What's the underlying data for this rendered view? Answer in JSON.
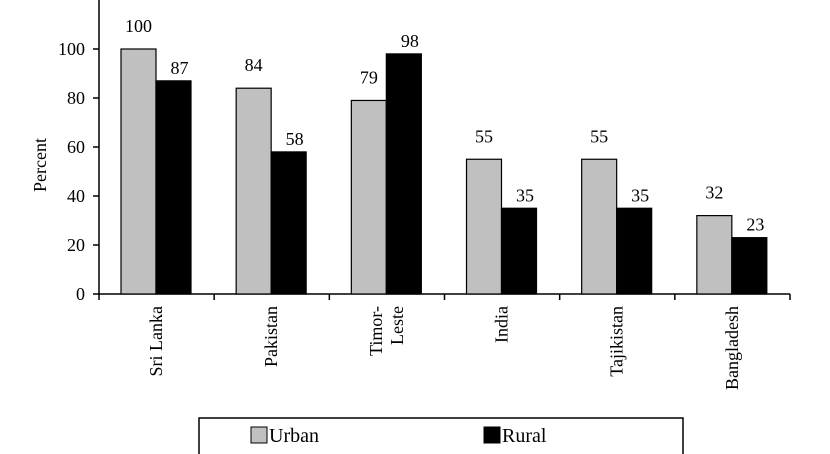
{
  "chart_data": {
    "type": "bar",
    "title": "",
    "xlabel": "",
    "ylabel": "Percent",
    "ylim": [
      0,
      120
    ],
    "yticks": [
      0,
      20,
      40,
      60,
      80,
      100
    ],
    "categories": [
      "Sri Lanka",
      "Pakistan",
      "Timor-Leste",
      "India",
      "Tajikistan",
      "Bangladesh"
    ],
    "category_label_lines": [
      [
        "Sri Lanka"
      ],
      [
        "Pakistan"
      ],
      [
        "Timor-",
        "Leste"
      ],
      [
        "India"
      ],
      [
        "Tajikistan"
      ],
      [
        "Bangladesh"
      ]
    ],
    "series": [
      {
        "name": "Urban",
        "values": [
          100,
          84,
          79,
          55,
          55,
          32
        ],
        "color": "#c0c0c0"
      },
      {
        "name": "Rural",
        "values": [
          87,
          58,
          98,
          35,
          35,
          23
        ],
        "color": "#000000"
      }
    ],
    "data_labels": true,
    "grid": false,
    "legend_position": "bottom"
  }
}
